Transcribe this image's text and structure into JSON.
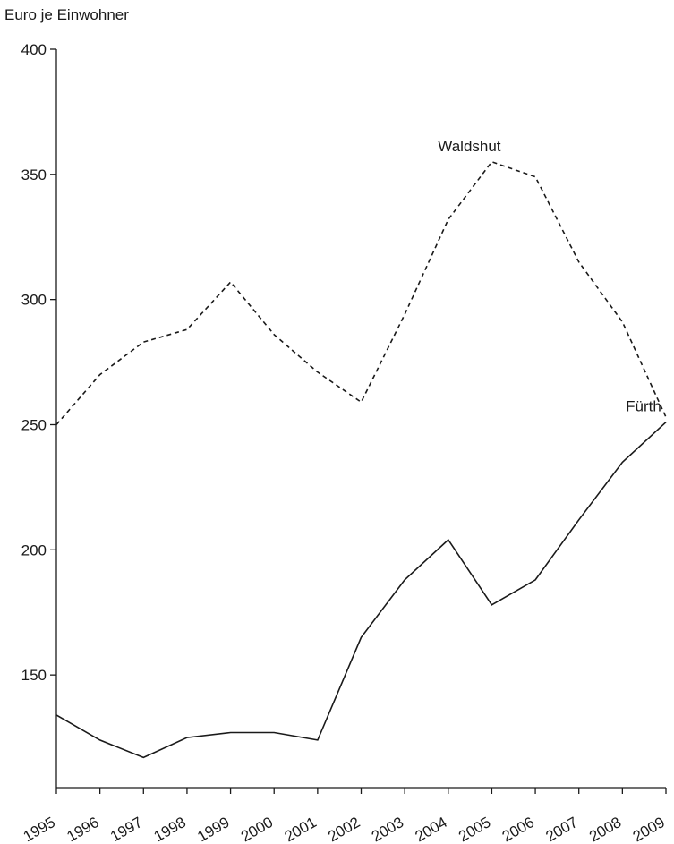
{
  "chart_data": {
    "type": "line",
    "title": "",
    "xlabel": "",
    "ylabel": "Euro je Einwohner",
    "ylim": [
      105,
      400
    ],
    "y_ticks": [
      150,
      200,
      250,
      300,
      350,
      400
    ],
    "grid": false,
    "legend": "none; series labeled directly on plot",
    "categories": [
      "1995",
      "1996",
      "1997",
      "1998",
      "1999",
      "2000",
      "2001",
      "2002",
      "2003",
      "2004",
      "2005",
      "2006",
      "2007",
      "2008",
      "2009"
    ],
    "series": [
      {
        "name": "Waldshut",
        "line_style": "dashed",
        "color": "#1a1a1a",
        "values": [
          250,
          270,
          283,
          288,
          307,
          286,
          271,
          259,
          294,
          332,
          355,
          349,
          315,
          291,
          253
        ]
      },
      {
        "name": "Fürth",
        "line_style": "solid",
        "color": "#1a1a1a",
        "values": [
          134,
          124,
          117,
          125,
          127,
          127,
          124,
          165,
          188,
          204,
          178,
          188,
          212,
          235,
          251
        ]
      }
    ]
  }
}
